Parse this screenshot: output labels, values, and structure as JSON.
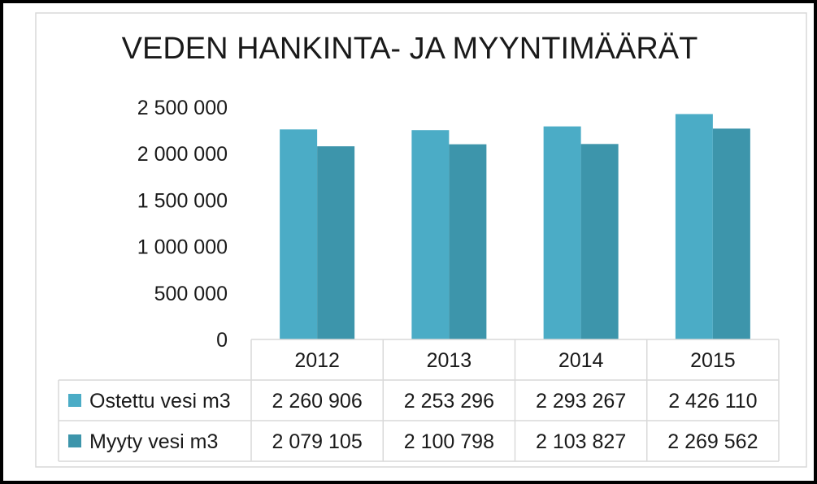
{
  "chart_data": {
    "type": "bar",
    "title": "VEDEN HANKINTA- JA MYYNTIMÄÄRÄT",
    "categories": [
      "2012",
      "2013",
      "2014",
      "2015"
    ],
    "ylim": [
      0,
      2500000
    ],
    "yticks": [
      0,
      500000,
      1000000,
      1500000,
      2000000,
      2500000
    ],
    "ytick_labels": [
      "0",
      "500 000",
      "1 000 000",
      "1 500 000",
      "2 000 000",
      "2 500 000"
    ],
    "grid": false,
    "legend": "data-table-left",
    "series": [
      {
        "name": "Ostettu vesi m3",
        "color": "#4bacc6",
        "values": [
          2260906,
          2253296,
          2293267,
          2426110
        ],
        "labels": [
          "2 260 906",
          "2 253 296",
          "2 293 267",
          "2 426 110"
        ]
      },
      {
        "name": "Myyty vesi m3",
        "color": "#3d95ab",
        "values": [
          2079105,
          2100798,
          2103827,
          2269562
        ],
        "labels": [
          "2 079 105",
          "2 100 798",
          "2 103 827",
          "2 269 562"
        ]
      }
    ]
  }
}
